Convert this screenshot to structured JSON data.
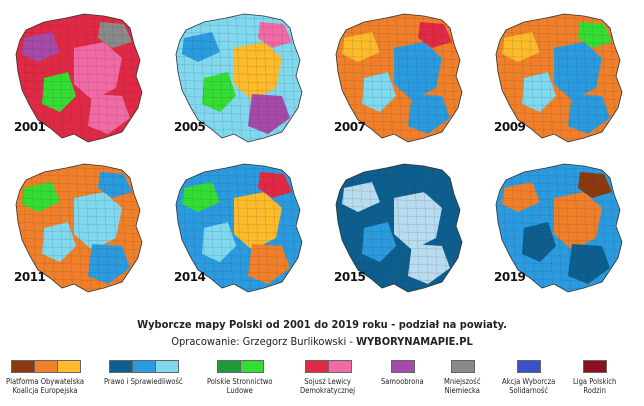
{
  "title": "Wyborcze mapy Polski od 2001 do 2019 roku - podział na powiaty.",
  "credit_prefix": "Opracowanie: Grzegorz Burlikowski - ",
  "credit_site": "WYBORYNAMAPIE.PL",
  "colors": {
    "po_dark": "#8a3a0e",
    "po_mid": "#f07f2a",
    "po_light": "#fbbb2a",
    "pis_dark": "#0d5f8f",
    "pis_mid": "#2b9be0",
    "pis_light": "#7fd8ee",
    "pis_pale": "#b8dcef",
    "psl_dark": "#1e9a3a",
    "psl_light": "#33dd33",
    "sld_dark": "#e02a45",
    "sld_light": "#f06aa5",
    "samo": "#a54aa8",
    "mn": "#8a8a8a",
    "awss": "#3a50c8",
    "lpr": "#8a1020"
  },
  "maps": [
    {
      "year": "2001",
      "base": "sld_dark",
      "patches": [
        "sld_light",
        "sld_light",
        "psl_light",
        "samo",
        "mn"
      ]
    },
    {
      "year": "2005",
      "base": "pis_light",
      "patches": [
        "po_light",
        "samo",
        "psl_light",
        "pis_mid",
        "sld_light"
      ]
    },
    {
      "year": "2007",
      "base": "po_mid",
      "patches": [
        "pis_mid",
        "pis_mid",
        "pis_light",
        "po_light",
        "sld_dark"
      ]
    },
    {
      "year": "2009",
      "base": "po_mid",
      "patches": [
        "pis_mid",
        "pis_mid",
        "pis_light",
        "po_light",
        "psl_light"
      ]
    },
    {
      "year": "2011",
      "base": "po_mid",
      "patches": [
        "pis_light",
        "pis_mid",
        "pis_light",
        "psl_light",
        "pis_mid"
      ]
    },
    {
      "year": "2014",
      "base": "pis_mid",
      "patches": [
        "po_light",
        "po_mid",
        "pis_light",
        "psl_light",
        "sld_dark"
      ]
    },
    {
      "year": "2015",
      "base": "pis_dark",
      "patches": [
        "pis_pale",
        "pis_pale",
        "pis_mid",
        "pis_pale",
        "pis_dark"
      ]
    },
    {
      "year": "2019",
      "base": "pis_mid",
      "patches": [
        "po_mid",
        "pis_dark",
        "pis_dark",
        "po_mid",
        "po_dark"
      ]
    }
  ],
  "legend": [
    {
      "label": "Platforma Obywatelska\nKoalicja Europejska",
      "swatches": [
        "po_dark",
        "po_mid",
        "po_light"
      ]
    },
    {
      "label": "Prawo i Sprawiedliwość",
      "swatches": [
        "pis_dark",
        "pis_mid",
        "pis_light"
      ]
    },
    {
      "label": "Polskie Stronnictwo\nLudowe",
      "swatches": [
        "psl_dark",
        "psl_light"
      ]
    },
    {
      "label": "Sojusz Lewicy\nDemokratycznej",
      "swatches": [
        "sld_dark",
        "sld_light"
      ]
    },
    {
      "label": "Samoobrona",
      "swatches": [
        "samo"
      ]
    },
    {
      "label": "Mniejszość\nNiemiecka",
      "swatches": [
        "mn"
      ]
    },
    {
      "label": "Akcja Wyborcza\nSolidarność",
      "swatches": [
        "awss"
      ]
    },
    {
      "label": "Liga Polskich\nRodzin",
      "swatches": [
        "lpr"
      ]
    }
  ]
}
